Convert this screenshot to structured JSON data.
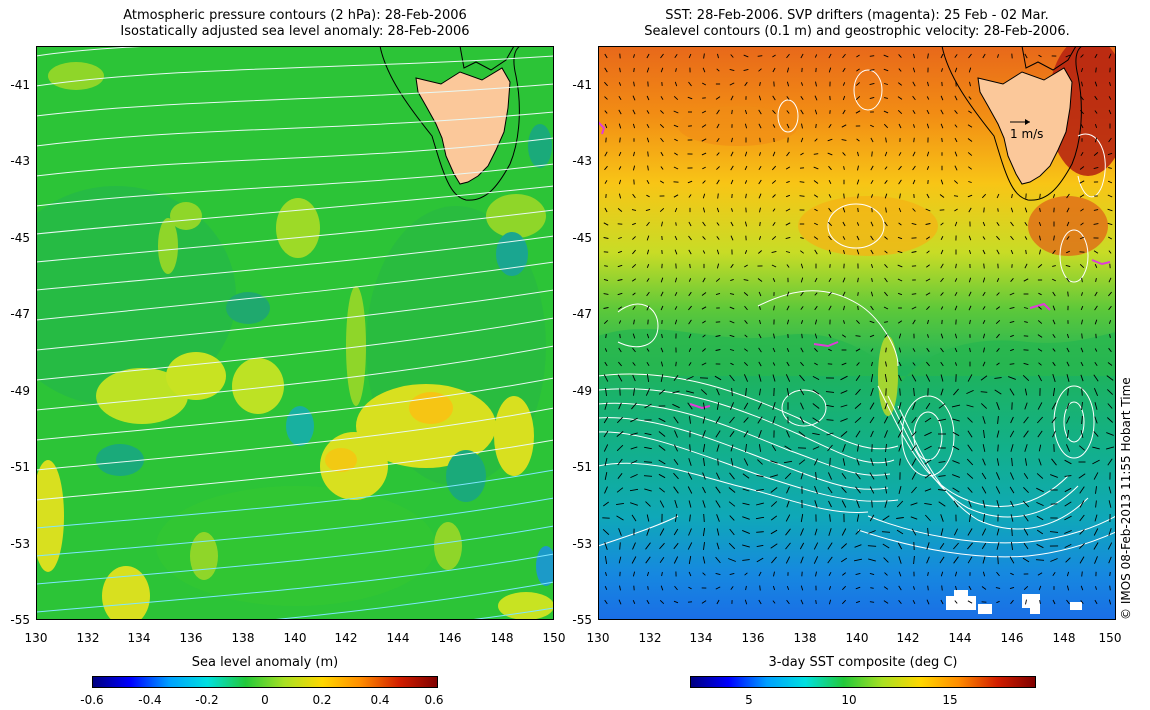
{
  "left_panel": {
    "title_line1": "Atmospheric pressure contours (2 hPa): 28-Feb-2006",
    "title_line2": "Isostatically adjusted sea level anomaly: 28-Feb-2006",
    "colorbar": {
      "label": "Sea level anomaly (m)",
      "ticks": [
        "-0.6",
        "-0.4",
        "-0.2",
        "0",
        "0.2",
        "0.4",
        "0.6"
      ],
      "colors": [
        "#00007f",
        "#0000ff",
        "#00a0ff",
        "#00e0e0",
        "#22c93a",
        "#a8e023",
        "#ffd700",
        "#ff8c00",
        "#d21e00",
        "#7f0000"
      ]
    }
  },
  "right_panel": {
    "title_line1": "SST: 28-Feb-2006. SVP drifters (magenta): 25 Feb - 02 Mar.",
    "title_line2": "Sealevel contours (0.1 m) and geostrophic velocity: 28-Feb-2006.",
    "velocity_scale_label": "1 m/s",
    "colorbar": {
      "label": "3-day SST composite (deg C)",
      "ticks": [
        "5",
        "10",
        "15"
      ],
      "colors": [
        "#00007f",
        "#0000ff",
        "#00a0ff",
        "#00e0e0",
        "#22c93a",
        "#a8e023",
        "#ffd700",
        "#ff8c00",
        "#d21e00",
        "#7f0000"
      ]
    }
  },
  "axes": {
    "lat_ticks": [
      "-41",
      "-43",
      "-45",
      "-47",
      "-49",
      "-51",
      "-53",
      "-55"
    ],
    "lon_ticks": [
      "130",
      "132",
      "134",
      "136",
      "138",
      "140",
      "142",
      "144",
      "146",
      "148",
      "150"
    ]
  },
  "land_color": "#fbc89a",
  "credit": "© IMOS 08-Feb-2013 11:55 Hobart Time"
}
